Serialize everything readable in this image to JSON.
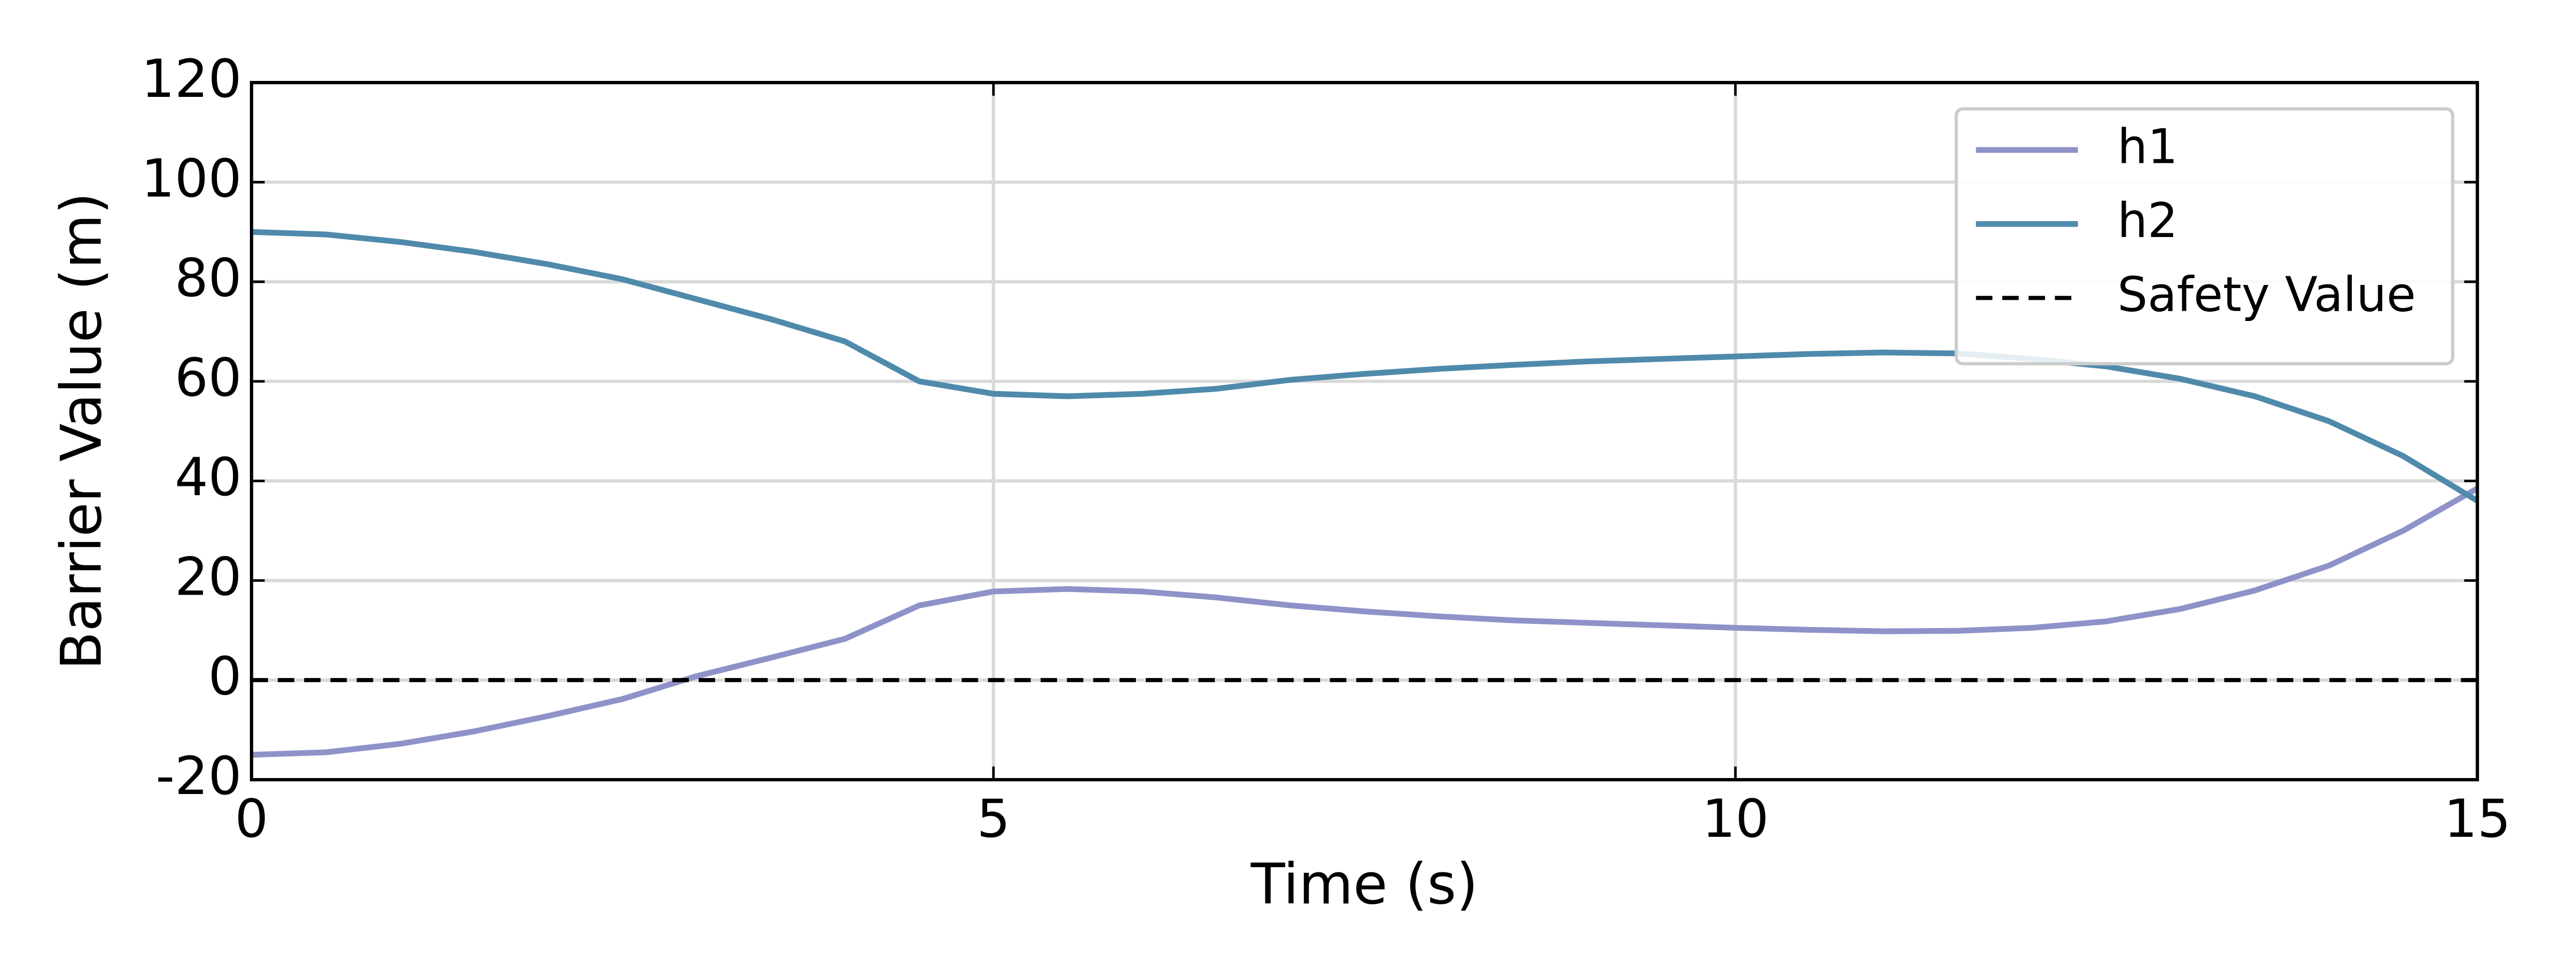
{
  "chart_data": {
    "type": "line",
    "xlabel": "Time (s)",
    "ylabel": "Barrier Value (m)",
    "xlim": [
      0,
      15
    ],
    "xticks": [
      0,
      5,
      10,
      15
    ],
    "ylim": [
      -20,
      120
    ],
    "yticks": [
      -20,
      0,
      20,
      40,
      60,
      80,
      100,
      120
    ],
    "grid": true,
    "legend": "upper right",
    "series": [
      {
        "name": "h1",
        "color": "#8e92c8",
        "dash": false,
        "x": [
          0,
          0.5,
          1,
          1.5,
          2,
          2.5,
          3,
          3.5,
          4,
          4.5,
          5,
          5.5,
          6,
          6.5,
          7,
          7.5,
          8,
          8.5,
          9,
          9.5,
          10,
          10.5,
          11,
          11.5,
          12,
          12.5,
          13,
          13.5,
          14,
          14.5,
          15
        ],
        "values": [
          -15,
          -14.5,
          -12.8,
          -10.3,
          -7.2,
          -3.8,
          0.8,
          4.5,
          8.3,
          15,
          17.8,
          18.3,
          17.8,
          16.6,
          15,
          13.8,
          12.8,
          12,
          11.5,
          11,
          10.5,
          10.1,
          9.8,
          9.9,
          10.5,
          11.8,
          14.3,
          18,
          23,
          30,
          38.5
        ]
      },
      {
        "name": "h2",
        "color": "#4f8aab",
        "dash": false,
        "x": [
          0,
          0.5,
          1,
          1.5,
          2,
          2.5,
          3,
          3.5,
          4,
          4.5,
          5,
          5.5,
          6,
          6.5,
          7,
          7.5,
          8,
          8.5,
          9,
          9.5,
          10,
          10.5,
          11,
          11.5,
          12,
          12.5,
          13,
          13.5,
          14,
          14.5,
          15
        ],
        "values": [
          90,
          89.5,
          88,
          86,
          83.5,
          80.5,
          76.5,
          72.5,
          68,
          60,
          57.5,
          57,
          57.5,
          58.5,
          60.3,
          61.5,
          62.5,
          63.3,
          64,
          64.5,
          65,
          65.5,
          65.8,
          65.6,
          64.5,
          63,
          60.5,
          57,
          52,
          45,
          36
        ]
      },
      {
        "name": "Safety Value",
        "color": "#000000",
        "dash": true,
        "x": [
          0,
          15
        ],
        "values": [
          0,
          0
        ]
      }
    ]
  }
}
